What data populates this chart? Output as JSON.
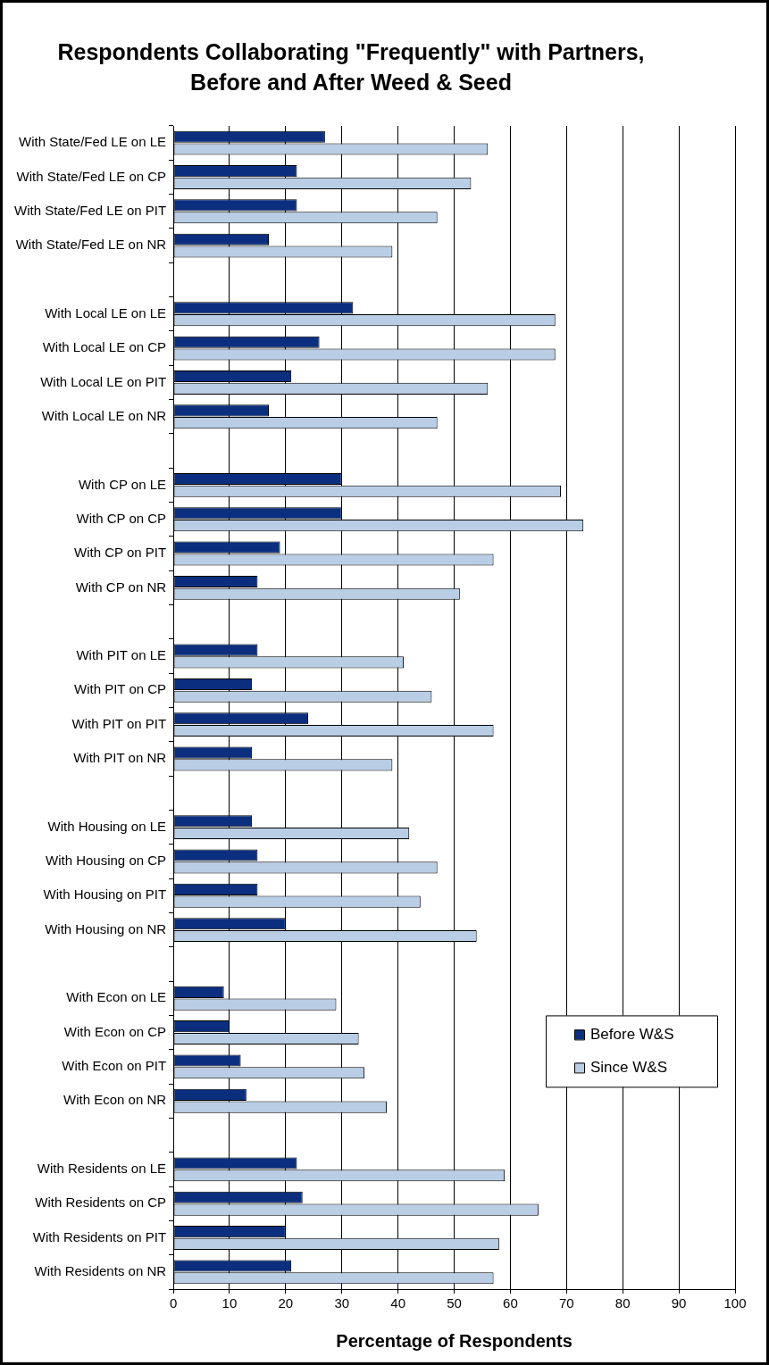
{
  "chart_data": {
    "type": "bar",
    "orientation": "horizontal",
    "title": "Respondents Collaborating \"Frequently\" with Partners, Before and After Weed & Seed",
    "xlabel": "Percentage of Respondents",
    "categories": [
      "With State/Fed LE on LE",
      "With State/Fed LE on CP",
      "With State/Fed LE on PIT",
      "With State/Fed LE on NR",
      null,
      "With Local LE on LE",
      "With Local LE on CP",
      "With Local LE on PIT",
      "With Local LE on NR",
      null,
      "With CP on LE",
      "With CP on CP",
      "With CP on PIT",
      "With CP on NR",
      null,
      "With PIT on LE",
      "With PIT on CP",
      "With PIT on PIT",
      "With PIT on NR",
      null,
      "With Housing on LE",
      "With Housing on CP",
      "With Housing on PIT",
      "With Housing on NR",
      null,
      "With Econ on LE",
      "With Econ on CP",
      "With Econ on PIT",
      "With Econ on NR",
      null,
      "With Residents on LE",
      "With Residents on CP",
      "With Residents on PIT",
      "With Residents on NR"
    ],
    "series": [
      {
        "name": "Before W&S",
        "color": "#0b2f7e",
        "values": [
          27,
          22,
          22,
          17,
          null,
          32,
          26,
          21,
          17,
          null,
          30,
          30,
          19,
          15,
          null,
          15,
          14,
          24,
          14,
          null,
          14,
          15,
          15,
          20,
          null,
          9,
          10,
          12,
          13,
          null,
          22,
          23,
          20,
          21
        ]
      },
      {
        "name": "Since W&S",
        "color": "#b9cde5",
        "values": [
          56,
          53,
          47,
          39,
          null,
          68,
          68,
          56,
          47,
          null,
          69,
          73,
          57,
          51,
          null,
          41,
          46,
          57,
          39,
          null,
          42,
          47,
          44,
          54,
          null,
          29,
          33,
          34,
          38,
          null,
          59,
          65,
          58,
          57
        ]
      }
    ],
    "xlim": [
      0,
      100
    ],
    "xticks": [
      0,
      10,
      20,
      30,
      40,
      50,
      60,
      70,
      80,
      90,
      100
    ],
    "grid": "x",
    "legend": "right"
  }
}
